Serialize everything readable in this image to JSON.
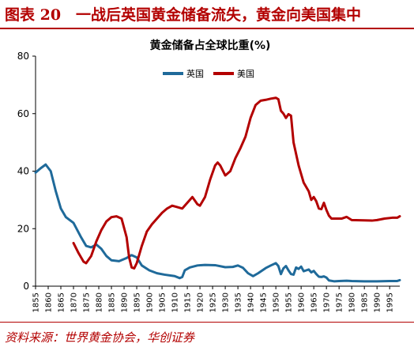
{
  "header": {
    "title": "图表 20　一战后英国黄金储备流失，黄金向美国集中",
    "accent_color": "#b30000"
  },
  "footer": {
    "source": "资料来源：世界黄金协会，华创证券"
  },
  "chart_data": {
    "type": "line",
    "title": "黄金储备占全球比重(%)",
    "xlabel": "",
    "ylabel": "",
    "xlim": [
      1855,
      1999
    ],
    "ylim": [
      0,
      80
    ],
    "yticks": [
      0,
      20,
      40,
      60,
      80
    ],
    "xticks": [
      1855,
      1860,
      1865,
      1870,
      1875,
      1880,
      1885,
      1890,
      1895,
      1900,
      1905,
      1910,
      1915,
      1920,
      1925,
      1930,
      1935,
      1940,
      1945,
      1950,
      1955,
      1960,
      1965,
      1970,
      1975,
      1980,
      1985,
      1990,
      1995
    ],
    "grid": false,
    "legend_position": "top-center",
    "series": [
      {
        "name": "英国",
        "color": "#1f6a9a",
        "points": [
          [
            1855,
            39.5
          ],
          [
            1857,
            41
          ],
          [
            1859,
            42.3
          ],
          [
            1861,
            40
          ],
          [
            1863,
            33
          ],
          [
            1865,
            27
          ],
          [
            1867,
            24
          ],
          [
            1870,
            22
          ],
          [
            1873,
            17
          ],
          [
            1875,
            14
          ],
          [
            1877,
            13.5
          ],
          [
            1879,
            14.5
          ],
          [
            1881,
            13
          ],
          [
            1883,
            10.5
          ],
          [
            1885,
            9
          ],
          [
            1888,
            8.7
          ],
          [
            1891,
            9.8
          ],
          [
            1893,
            10.8
          ],
          [
            1895,
            10
          ],
          [
            1897,
            7.2
          ],
          [
            1900,
            5.5
          ],
          [
            1903,
            4.5
          ],
          [
            1906,
            4
          ],
          [
            1910,
            3.5
          ],
          [
            1912,
            2.8
          ],
          [
            1913,
            3.2
          ],
          [
            1914,
            5.5
          ],
          [
            1916,
            6.5
          ],
          [
            1919,
            7.2
          ],
          [
            1922,
            7.4
          ],
          [
            1926,
            7.3
          ],
          [
            1930,
            6.6
          ],
          [
            1933,
            6.7
          ],
          [
            1935,
            7.2
          ],
          [
            1937,
            6.4
          ],
          [
            1939,
            4.5
          ],
          [
            1941,
            3.5
          ],
          [
            1943,
            4.5
          ],
          [
            1946,
            6.3
          ],
          [
            1948,
            7.2
          ],
          [
            1950,
            8.0
          ],
          [
            1951,
            7.0
          ],
          [
            1952,
            4.2
          ],
          [
            1953,
            6.2
          ],
          [
            1954,
            7.0
          ],
          [
            1955,
            5.5
          ],
          [
            1956,
            4.2
          ],
          [
            1957,
            4.0
          ],
          [
            1958,
            6.5
          ],
          [
            1959,
            6.0
          ],
          [
            1960,
            6.8
          ],
          [
            1961,
            5.2
          ],
          [
            1962,
            5.5
          ],
          [
            1963,
            5.8
          ],
          [
            1964,
            4.8
          ],
          [
            1965,
            5.3
          ],
          [
            1966,
            4.2
          ],
          [
            1967,
            3.3
          ],
          [
            1968,
            3.2
          ],
          [
            1969,
            3.4
          ],
          [
            1970,
            3.0
          ],
          [
            1971,
            2.0
          ],
          [
            1973,
            1.7
          ],
          [
            1975,
            1.8
          ],
          [
            1978,
            1.9
          ],
          [
            1980,
            1.8
          ],
          [
            1985,
            1.7
          ],
          [
            1990,
            1.7
          ],
          [
            1995,
            1.8
          ],
          [
            1998,
            1.8
          ],
          [
            1999,
            2.1
          ]
        ]
      },
      {
        "name": "美国",
        "color": "#b30000",
        "points": [
          [
            1870,
            15
          ],
          [
            1872,
            11.5
          ],
          [
            1874,
            8.5
          ],
          [
            1875,
            8
          ],
          [
            1877,
            10.5
          ],
          [
            1879,
            15.5
          ],
          [
            1881,
            19.5
          ],
          [
            1883,
            22.5
          ],
          [
            1885,
            24
          ],
          [
            1887,
            24.3
          ],
          [
            1889,
            23.5
          ],
          [
            1891,
            17
          ],
          [
            1892,
            10
          ],
          [
            1893,
            6.5
          ],
          [
            1894,
            6.2
          ],
          [
            1895,
            8
          ],
          [
            1897,
            14
          ],
          [
            1899,
            19
          ],
          [
            1901,
            21.5
          ],
          [
            1903,
            23.5
          ],
          [
            1905,
            25.5
          ],
          [
            1907,
            27
          ],
          [
            1909,
            28
          ],
          [
            1911,
            27.5
          ],
          [
            1913,
            27
          ],
          [
            1915,
            29
          ],
          [
            1917,
            31
          ],
          [
            1919,
            28.5
          ],
          [
            1920,
            28
          ],
          [
            1922,
            31
          ],
          [
            1924,
            37
          ],
          [
            1926,
            42
          ],
          [
            1927,
            43
          ],
          [
            1928,
            42
          ],
          [
            1930,
            38.5
          ],
          [
            1932,
            40
          ],
          [
            1934,
            44.5
          ],
          [
            1936,
            48
          ],
          [
            1938,
            52
          ],
          [
            1940,
            58.5
          ],
          [
            1942,
            63
          ],
          [
            1944,
            64.5
          ],
          [
            1946,
            64.8
          ],
          [
            1948,
            65.2
          ],
          [
            1950,
            65.5
          ],
          [
            1951,
            65.0
          ],
          [
            1952,
            61
          ],
          [
            1953,
            60
          ],
          [
            1954,
            58.5
          ],
          [
            1955,
            59.8
          ],
          [
            1956,
            59.3
          ],
          [
            1957,
            50
          ],
          [
            1959,
            42
          ],
          [
            1961,
            36
          ],
          [
            1963,
            33
          ],
          [
            1964,
            30
          ],
          [
            1965,
            31
          ],
          [
            1966,
            29.5
          ],
          [
            1967,
            27
          ],
          [
            1968,
            26.8
          ],
          [
            1969,
            29
          ],
          [
            1970,
            26.5
          ],
          [
            1971,
            24.5
          ],
          [
            1972,
            23.5
          ],
          [
            1974,
            23.5
          ],
          [
            1976,
            23.5
          ],
          [
            1978,
            24.1
          ],
          [
            1980,
            23.0
          ],
          [
            1985,
            22.9
          ],
          [
            1988,
            22.8
          ],
          [
            1990,
            23.0
          ],
          [
            1993,
            23.5
          ],
          [
            1996,
            23.8
          ],
          [
            1998,
            23.8
          ],
          [
            1999,
            24.3
          ]
        ]
      }
    ]
  }
}
